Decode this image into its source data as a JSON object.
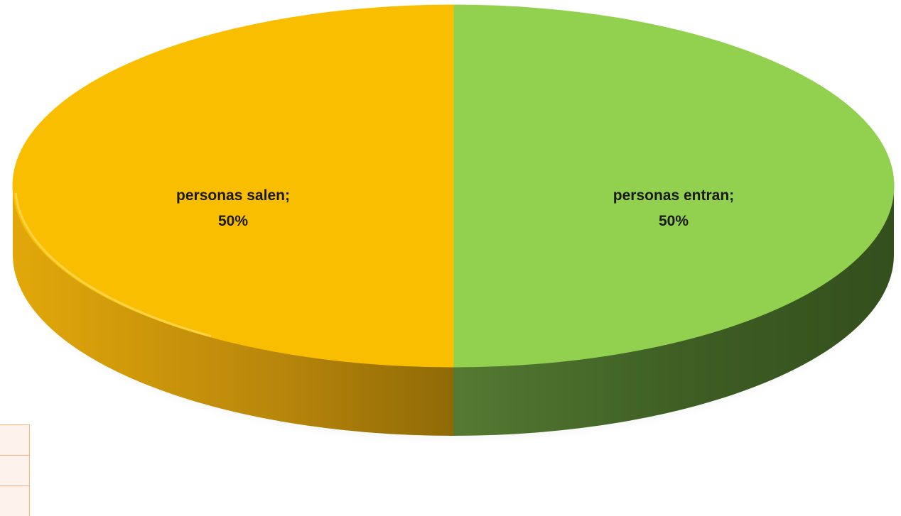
{
  "chart_data": {
    "type": "pie",
    "style": "3d",
    "slices": [
      {
        "name": "personas entran",
        "value": 50,
        "label": "50%",
        "color": "#92d050",
        "side_color": "#3a5a22"
      },
      {
        "name": "personas salen",
        "value": 50,
        "label": "50%",
        "color": "#fabe00",
        "side_color": "#b8860b"
      }
    ],
    "label_separator": ";",
    "legend": "none"
  }
}
